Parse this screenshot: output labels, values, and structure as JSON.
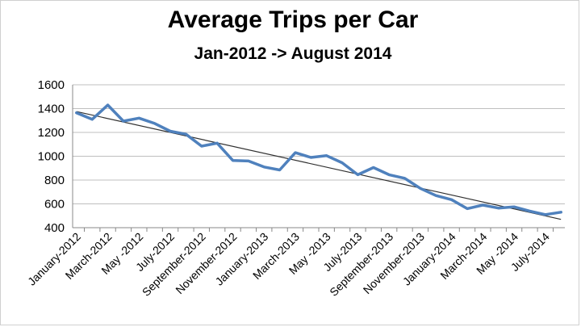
{
  "chart_data": {
    "type": "line",
    "title": "Average Trips per Car",
    "subtitle": "Jan-2012 -> August 2014",
    "xlabel": "",
    "ylabel": "",
    "ylim": [
      400,
      1600
    ],
    "yticks": [
      400,
      600,
      800,
      1000,
      1200,
      1400,
      1600
    ],
    "grid": true,
    "legend": "none",
    "x_tick_labels": [
      "January-2012",
      "March-2012",
      "May -2012",
      "July-2012",
      "September-2012",
      "November-2012",
      "January-2013",
      "March-2013",
      "May -2013",
      "July-2013",
      "September-2013",
      "November-2013",
      "January-2014",
      "March-2014",
      "May -2014",
      "July-2014"
    ],
    "x_tick_label_indices": [
      0,
      2,
      4,
      6,
      8,
      10,
      12,
      14,
      16,
      18,
      20,
      22,
      24,
      26,
      28,
      30
    ],
    "series": [
      {
        "values": [
          1365,
          1310,
          1430,
          1295,
          1320,
          1275,
          1210,
          1185,
          1085,
          1110,
          965,
          960,
          910,
          885,
          1030,
          990,
          1005,
          945,
          845,
          905,
          845,
          815,
          730,
          670,
          635,
          560,
          590,
          565,
          575,
          540,
          510,
          530
        ],
        "color": "#4f81bd"
      }
    ],
    "trendline": {
      "start": 1375,
      "end": 470,
      "color": "#303030"
    }
  }
}
